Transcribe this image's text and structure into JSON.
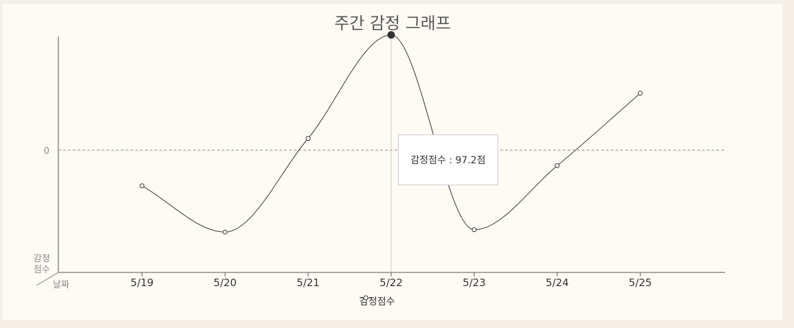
{
  "chart_data": {
    "type": "line",
    "title": "주간 감정 그래프",
    "xlabel": "날짜",
    "ylabel": "감정점수",
    "categories": [
      "5/19",
      "5/20",
      "5/21",
      "5/22",
      "5/23",
      "5/24",
      "5/25"
    ],
    "series": [
      {
        "name": "감정점수",
        "values": [
          -30,
          -69,
          10,
          97.2,
          -67,
          -13,
          48
        ]
      }
    ],
    "ylim": [
      -103,
      100
    ],
    "y_ticks": [
      "0"
    ],
    "zero_line": "dashed",
    "active_index": 3,
    "tooltip": "감정점수 : 97.2점",
    "legend": "bottom-center",
    "colors": {
      "line": "#333333",
      "axis": "#555555",
      "background": "#fefbf5"
    }
  }
}
